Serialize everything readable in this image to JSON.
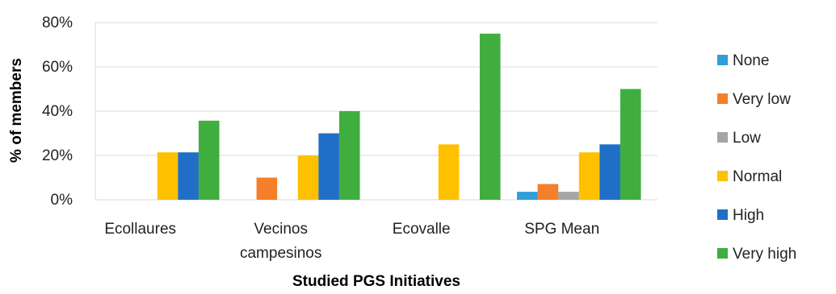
{
  "chart_data": {
    "type": "bar",
    "title": "",
    "xlabel": "Studied PGS Initiatives",
    "ylabel": "% of members",
    "ylim": [
      0,
      80
    ],
    "yticks": [
      "0%",
      "20%",
      "40%",
      "60%",
      "80%"
    ],
    "grid": true,
    "legend_position": "right",
    "categories": [
      [
        "Ecollaures"
      ],
      [
        "Vecinos",
        "campesinos"
      ],
      [
        "Ecovalle"
      ],
      [
        "SPG Mean"
      ]
    ],
    "series": [
      {
        "name": "None",
        "color": "#2e9fd8",
        "values": [
          0,
          0,
          0,
          3.6
        ]
      },
      {
        "name": "Very low",
        "color": "#f57f2a",
        "values": [
          0,
          10,
          0,
          7.1
        ]
      },
      {
        "name": "Low",
        "color": "#a5a5a5",
        "values": [
          0,
          0,
          0,
          3.6
        ]
      },
      {
        "name": "Normal",
        "color": "#ffc000",
        "values": [
          21.4,
          20,
          25,
          21.4
        ]
      },
      {
        "name": "High",
        "color": "#1f6fc6",
        "values": [
          21.4,
          30,
          0,
          25
        ]
      },
      {
        "name": "Very high",
        "color": "#3fae3f",
        "values": [
          35.7,
          40,
          75,
          50
        ]
      }
    ]
  }
}
